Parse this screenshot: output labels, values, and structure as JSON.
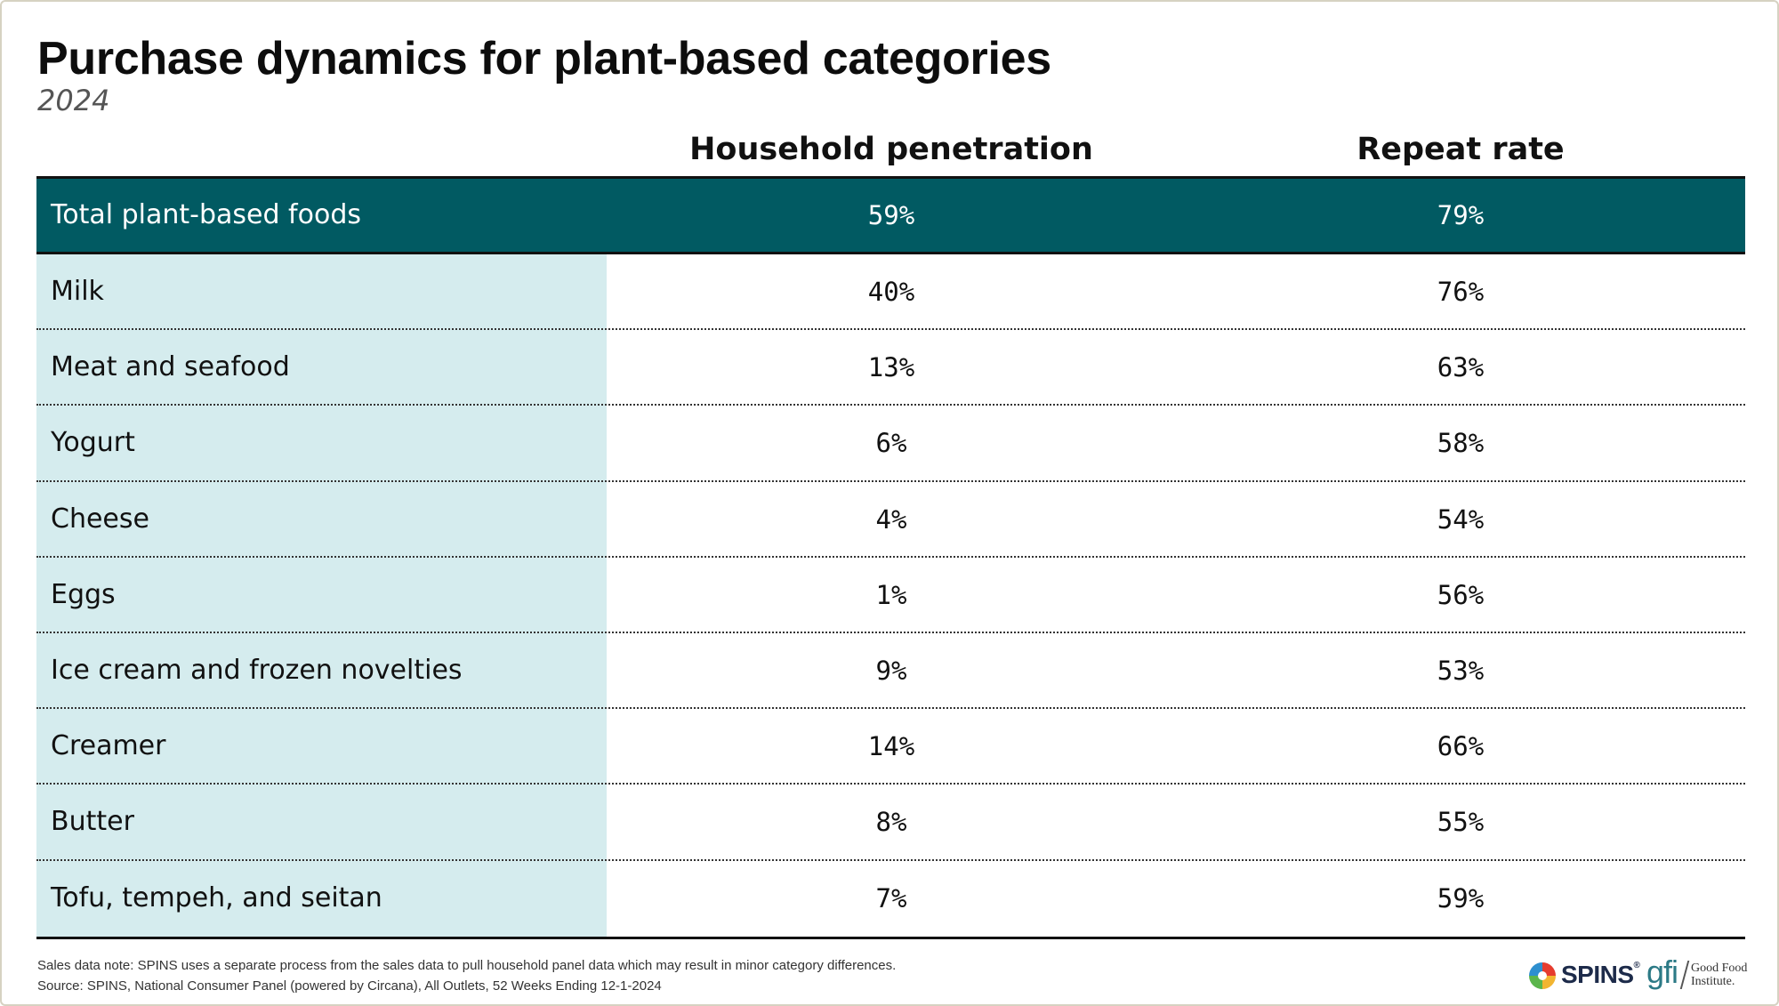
{
  "chart_data": {
    "type": "table",
    "title": "Purchase dynamics for plant-based categories",
    "subtitle": "2024",
    "columns": [
      "Household penetration",
      "Repeat rate"
    ],
    "total": {
      "category": "Total plant-based foods",
      "household_penetration": "59%",
      "repeat_rate": "79%"
    },
    "rows": [
      {
        "category": "Milk",
        "household_penetration": "40%",
        "repeat_rate": "76%"
      },
      {
        "category": "Meat and seafood",
        "household_penetration": "13%",
        "repeat_rate": "63%"
      },
      {
        "category": "Yogurt",
        "household_penetration": "6%",
        "repeat_rate": "58%"
      },
      {
        "category": "Cheese",
        "household_penetration": "4%",
        "repeat_rate": "54%"
      },
      {
        "category": "Eggs",
        "household_penetration": "1%",
        "repeat_rate": "56%"
      },
      {
        "category": "Ice cream and frozen novelties",
        "household_penetration": "9%",
        "repeat_rate": "53%"
      },
      {
        "category": "Creamer",
        "household_penetration": "14%",
        "repeat_rate": "66%"
      },
      {
        "category": "Butter",
        "household_penetration": "8%",
        "repeat_rate": "55%"
      },
      {
        "category": "Tofu, tempeh, and seitan",
        "household_penetration": "7%",
        "repeat_rate": "59%"
      }
    ],
    "note": "Sales data note: SPINS uses a separate process from the sales data to pull household panel data which may result in minor category differences.",
    "source": "Source: SPINS, National Consumer Panel (powered by Circana), All Outlets, 52 Weeks Ending 12-1-2024"
  },
  "logos": {
    "spins": "SPINS",
    "gfi": "gfi",
    "gfi_name_line1": "Good Food",
    "gfi_name_line2": "Institute."
  },
  "colors": {
    "total_row_bg": "#015a62",
    "label_column_bg": "#d5ecee"
  }
}
